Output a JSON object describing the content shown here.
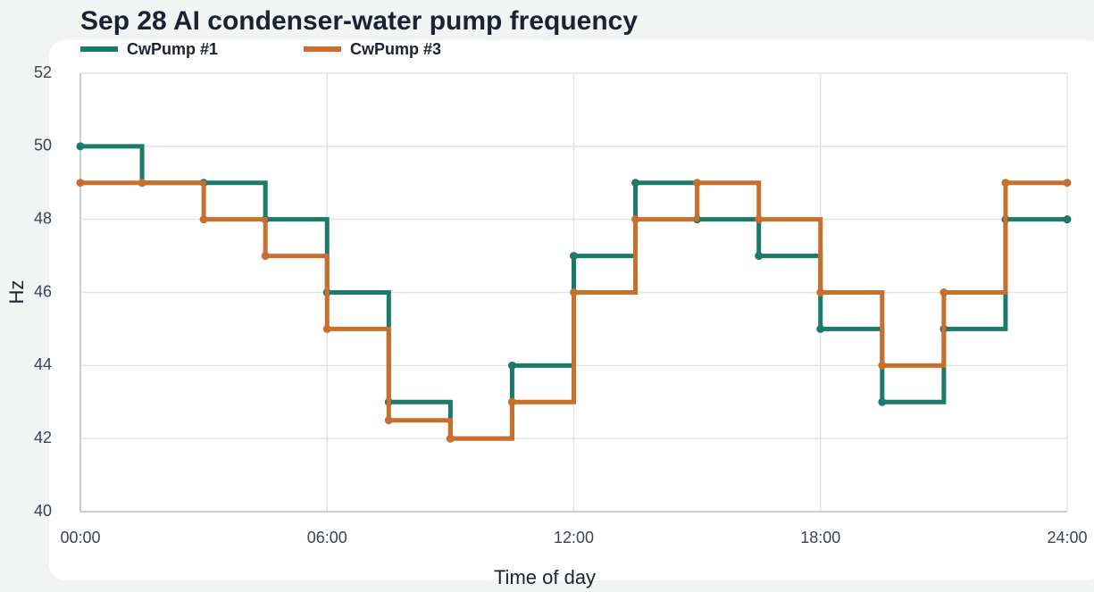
{
  "chart_data": {
    "type": "line",
    "step": "post",
    "title": "Sep 28 AI condenser-water pump frequency",
    "x_label": "Time of day",
    "y_label": "Hz",
    "x": [
      0,
      1.5,
      3,
      4.5,
      6,
      7.5,
      9,
      10.5,
      12,
      13.5,
      15,
      16.5,
      18,
      19.5,
      21,
      22.5,
      24
    ],
    "series": [
      {
        "name": "CwPump #1",
        "color": "#1b7a68",
        "values": [
          50,
          49,
          49,
          48,
          46,
          43,
          42,
          44,
          47,
          49,
          48,
          47,
          45,
          43,
          45,
          48,
          48
        ]
      },
      {
        "name": "CwPump #3",
        "color": "#c96f2e",
        "values": [
          49,
          49,
          48,
          47,
          45,
          42.5,
          42,
          43,
          46,
          48,
          49,
          48,
          46,
          44,
          46,
          49,
          49
        ]
      }
    ],
    "xlim": [
      0,
      24
    ],
    "xticks": [
      {
        "value": 0,
        "label": "00:00"
      },
      {
        "value": 6,
        "label": "06:00"
      },
      {
        "value": 12,
        "label": "12:00"
      },
      {
        "value": 18,
        "label": "18:00"
      },
      {
        "value": 24,
        "label": "24:00"
      }
    ],
    "ylim": [
      40,
      52
    ],
    "yticks": [
      40,
      42,
      44,
      46,
      48,
      50,
      52
    ],
    "grid": true,
    "legend": "top-left"
  }
}
